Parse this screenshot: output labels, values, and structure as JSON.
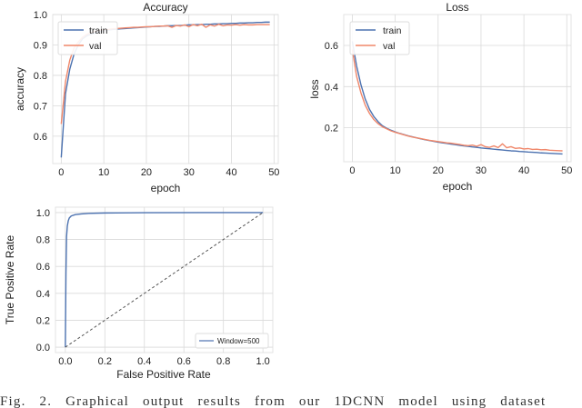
{
  "caption": "Fig. 2.  Graphical output results from our 1DCNN model using dataset",
  "colors": {
    "train": "#4c72b0",
    "val": "#f0876a",
    "roc": "#4c72b0",
    "chance": "#555555"
  },
  "chart_data": [
    {
      "type": "line",
      "title": "Accuracy",
      "xlabel": "epoch",
      "ylabel": "accuracy",
      "xlim": [
        -2,
        51
      ],
      "ylim": [
        0.51,
        1.0
      ],
      "xticks": [
        0,
        10,
        20,
        30,
        40,
        50
      ],
      "yticks": [
        0.6,
        0.7,
        0.8,
        0.9,
        1.0
      ],
      "xtick_labels": [
        "0",
        "10",
        "20",
        "30",
        "40",
        "50"
      ],
      "ytick_labels": [
        "0.6",
        "0.7",
        "0.8",
        "0.9",
        "1.0"
      ],
      "grid": true,
      "legend": "top-left",
      "x": [
        0,
        1,
        2,
        3,
        4,
        5,
        6,
        7,
        8,
        9,
        10,
        11,
        12,
        13,
        14,
        15,
        16,
        17,
        18,
        19,
        20,
        21,
        22,
        23,
        24,
        25,
        26,
        27,
        28,
        29,
        30,
        31,
        32,
        33,
        34,
        35,
        36,
        37,
        38,
        39,
        40,
        41,
        42,
        43,
        44,
        45,
        46,
        47,
        48,
        49
      ],
      "series": [
        {
          "name": "train",
          "color": "#4c72b0",
          "values": [
            0.53,
            0.74,
            0.82,
            0.87,
            0.9,
            0.92,
            0.93,
            0.935,
            0.94,
            0.944,
            0.947,
            0.949,
            0.951,
            0.952,
            0.953,
            0.954,
            0.955,
            0.956,
            0.957,
            0.958,
            0.959,
            0.96,
            0.961,
            0.961,
            0.962,
            0.963,
            0.963,
            0.964,
            0.964,
            0.965,
            0.966,
            0.966,
            0.967,
            0.967,
            0.968,
            0.968,
            0.969,
            0.969,
            0.97,
            0.97,
            0.971,
            0.971,
            0.972,
            0.972,
            0.973,
            0.973,
            0.974,
            0.974,
            0.975,
            0.975
          ]
        },
        {
          "name": "val",
          "color": "#f0876a",
          "values": [
            0.64,
            0.78,
            0.85,
            0.89,
            0.91,
            0.925,
            0.935,
            0.94,
            0.945,
            0.948,
            0.95,
            0.951,
            0.953,
            0.954,
            0.955,
            0.956,
            0.957,
            0.958,
            0.958,
            0.959,
            0.96,
            0.96,
            0.961,
            0.962,
            0.962,
            0.963,
            0.958,
            0.964,
            0.962,
            0.966,
            0.96,
            0.967,
            0.963,
            0.968,
            0.958,
            0.966,
            0.962,
            0.968,
            0.963,
            0.966,
            0.965,
            0.967,
            0.965,
            0.967,
            0.966,
            0.966,
            0.967,
            0.967,
            0.967,
            0.967
          ]
        }
      ]
    },
    {
      "type": "line",
      "title": "Loss",
      "xlabel": "epoch",
      "ylabel": "loss",
      "xlim": [
        -2,
        51
      ],
      "ylim": [
        0.035,
        0.75
      ],
      "xticks": [
        0,
        10,
        20,
        30,
        40,
        50
      ],
      "yticks": [
        0.2,
        0.4,
        0.6
      ],
      "xtick_labels": [
        "0",
        "10",
        "20",
        "30",
        "40",
        "50"
      ],
      "ytick_labels": [
        "0.2",
        "0.4",
        "0.6"
      ],
      "grid": true,
      "legend": "top-left",
      "x": [
        0,
        1,
        2,
        3,
        4,
        5,
        6,
        7,
        8,
        9,
        10,
        11,
        12,
        13,
        14,
        15,
        16,
        17,
        18,
        19,
        20,
        21,
        22,
        23,
        24,
        25,
        26,
        27,
        28,
        29,
        30,
        31,
        32,
        33,
        34,
        35,
        36,
        37,
        38,
        39,
        40,
        41,
        42,
        43,
        44,
        45,
        46,
        47,
        48,
        49
      ],
      "series": [
        {
          "name": "train",
          "color": "#4c72b0",
          "values": [
            0.62,
            0.5,
            0.41,
            0.34,
            0.29,
            0.255,
            0.23,
            0.21,
            0.198,
            0.188,
            0.18,
            0.173,
            0.167,
            0.161,
            0.156,
            0.151,
            0.146,
            0.142,
            0.138,
            0.134,
            0.13,
            0.127,
            0.124,
            0.121,
            0.118,
            0.115,
            0.112,
            0.11,
            0.107,
            0.105,
            0.102,
            0.1,
            0.098,
            0.096,
            0.094,
            0.092,
            0.09,
            0.088,
            0.087,
            0.085,
            0.084,
            0.082,
            0.081,
            0.08,
            0.078,
            0.077,
            0.076,
            0.075,
            0.074,
            0.073
          ]
        },
        {
          "name": "val",
          "color": "#f0876a",
          "values": [
            0.58,
            0.45,
            0.37,
            0.31,
            0.27,
            0.24,
            0.22,
            0.205,
            0.195,
            0.185,
            0.178,
            0.172,
            0.166,
            0.16,
            0.155,
            0.151,
            0.147,
            0.143,
            0.139,
            0.136,
            0.133,
            0.13,
            0.127,
            0.125,
            0.122,
            0.119,
            0.115,
            0.113,
            0.116,
            0.11,
            0.118,
            0.108,
            0.105,
            0.112,
            0.104,
            0.122,
            0.103,
            0.108,
            0.1,
            0.102,
            0.097,
            0.099,
            0.095,
            0.096,
            0.093,
            0.094,
            0.091,
            0.09,
            0.089,
            0.088
          ]
        }
      ]
    },
    {
      "type": "line",
      "title": "",
      "xlabel": "False Positive Rate",
      "ylabel": "True Positive Rate",
      "xlim": [
        -0.05,
        1.05
      ],
      "ylim": [
        -0.04,
        1.04
      ],
      "xticks": [
        0.0,
        0.2,
        0.4,
        0.6,
        0.8,
        1.0
      ],
      "yticks": [
        0.0,
        0.2,
        0.4,
        0.6,
        0.8,
        1.0
      ],
      "xtick_labels": [
        "0.0",
        "0.2",
        "0.4",
        "0.6",
        "0.8",
        "1.0"
      ],
      "ytick_labels": [
        "0.0",
        "0.2",
        "0.4",
        "0.6",
        "0.8",
        "1.0"
      ],
      "grid": true,
      "legend": "bottom-right",
      "series": [
        {
          "name": "Window=500",
          "color": "#4c72b0",
          "x": [
            0,
            0.003,
            0.006,
            0.01,
            0.015,
            0.02,
            0.03,
            0.05,
            0.08,
            0.12,
            0.2,
            0.4,
            0.7,
            1.0
          ],
          "y": [
            0,
            0.55,
            0.82,
            0.9,
            0.94,
            0.96,
            0.975,
            0.985,
            0.99,
            0.994,
            0.997,
            0.999,
            1.0,
            1.0
          ]
        },
        {
          "name": "",
          "color": "#555555",
          "dashed": true,
          "x": [
            0,
            1
          ],
          "y": [
            0,
            1
          ]
        }
      ]
    }
  ]
}
